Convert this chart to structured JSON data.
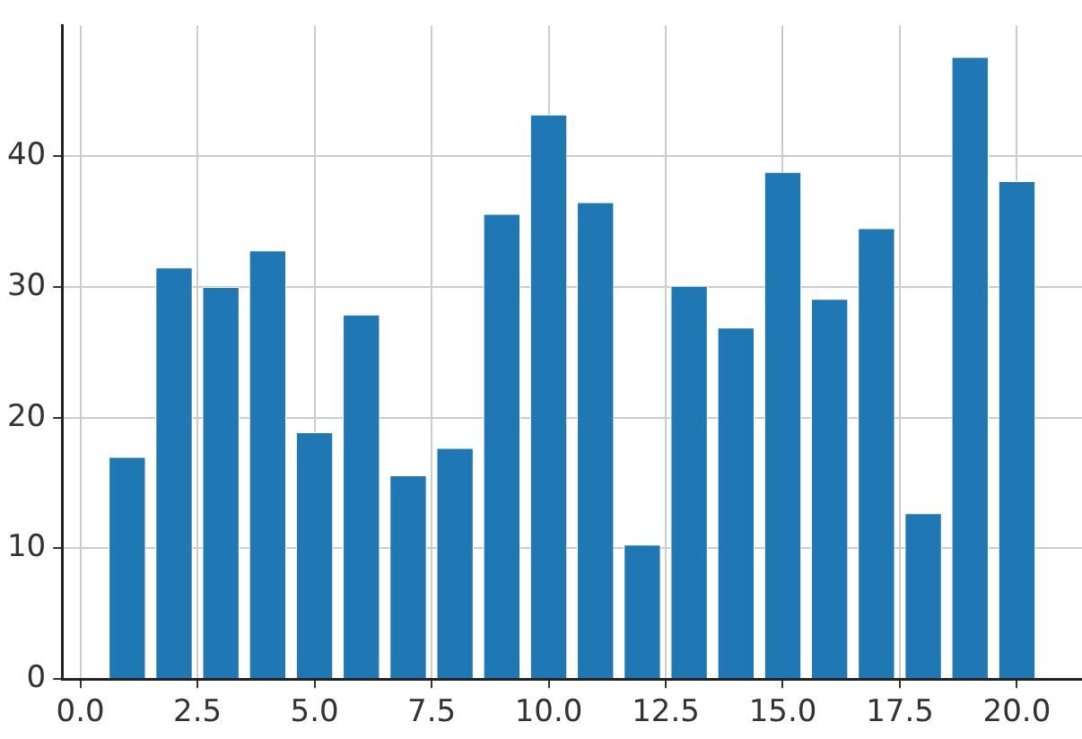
{
  "chart_data": {
    "type": "bar",
    "x": [
      1,
      2,
      3,
      4,
      5,
      6,
      7,
      8,
      9,
      10,
      11,
      12,
      13,
      14,
      15,
      16,
      17,
      18,
      19,
      20
    ],
    "values": [
      17,
      31.5,
      30,
      32.8,
      18.9,
      27.9,
      15.6,
      17.7,
      35.6,
      43.2,
      36.5,
      10.3,
      30.1,
      26.9,
      38.8,
      29.1,
      34.5,
      12.7,
      47.6,
      38.1
    ],
    "color": "#1f77b4",
    "xlim": [
      -0.39,
      21.39
    ],
    "ylim": [
      0,
      50
    ],
    "xticks": [
      {
        "value": 0,
        "label": "0.0"
      },
      {
        "value": 2.5,
        "label": "2.5"
      },
      {
        "value": 5,
        "label": "5.0"
      },
      {
        "value": 7.5,
        "label": "7.5"
      },
      {
        "value": 10,
        "label": "10.0"
      },
      {
        "value": 12.5,
        "label": "12.5"
      },
      {
        "value": 15,
        "label": "15.0"
      },
      {
        "value": 17.5,
        "label": "17.5"
      },
      {
        "value": 20,
        "label": "20.0"
      }
    ],
    "yticks": [
      0,
      10,
      20,
      30,
      40
    ],
    "grid": true
  }
}
